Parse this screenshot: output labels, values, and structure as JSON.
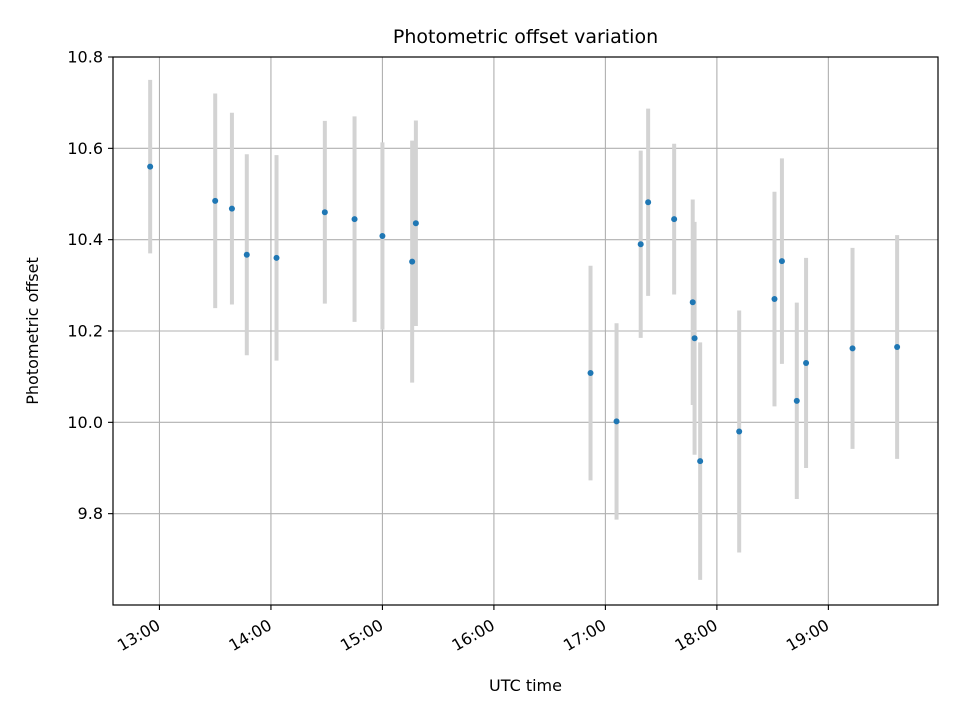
{
  "chart_data": {
    "type": "scatter",
    "title": "Photometric offset variation",
    "xlabel": "UTC time",
    "ylabel": "Photometric offset",
    "xlim": [
      "12:35",
      "19:59"
    ],
    "ylim": [
      9.6,
      10.8
    ],
    "x_ticks": [
      "13:00",
      "14:00",
      "15:00",
      "16:00",
      "17:00",
      "18:00",
      "19:00"
    ],
    "y_ticks": [
      9.8,
      10.0,
      10.2,
      10.4,
      10.6,
      10.8
    ],
    "grid": true,
    "colors": {
      "point": "#1f77b4",
      "errorbar": "#d3d3d3",
      "grid": "#b0b0b0"
    },
    "points": [
      {
        "x": "12:55",
        "y": 10.56,
        "err": 0.19
      },
      {
        "x": "13:30",
        "y": 10.485,
        "err": 0.235
      },
      {
        "x": "13:39",
        "y": 10.468,
        "err": 0.21
      },
      {
        "x": "13:47",
        "y": 10.367,
        "err": 0.22
      },
      {
        "x": "14:03",
        "y": 10.36,
        "err": 0.225
      },
      {
        "x": "14:29",
        "y": 10.46,
        "err": 0.2
      },
      {
        "x": "14:45",
        "y": 10.445,
        "err": 0.225
      },
      {
        "x": "15:00",
        "y": 10.408,
        "err": 0.205
      },
      {
        "x": "15:16",
        "y": 10.352,
        "err": 0.265
      },
      {
        "x": "15:18",
        "y": 10.436,
        "err": 0.225
      },
      {
        "x": "16:52",
        "y": 10.108,
        "err": 0.235
      },
      {
        "x": "17:06",
        "y": 10.002,
        "err": 0.215
      },
      {
        "x": "17:19",
        "y": 10.39,
        "err": 0.205
      },
      {
        "x": "17:23",
        "y": 10.482,
        "err": 0.205
      },
      {
        "x": "17:37",
        "y": 10.445,
        "err": 0.165
      },
      {
        "x": "17:47",
        "y": 10.263,
        "err": 0.225
      },
      {
        "x": "17:48",
        "y": 10.184,
        "err": 0.255
      },
      {
        "x": "17:51",
        "y": 9.915,
        "err": 0.26
      },
      {
        "x": "18:12",
        "y": 9.98,
        "err": 0.265
      },
      {
        "x": "18:31",
        "y": 10.27,
        "err": 0.235
      },
      {
        "x": "18:35",
        "y": 10.353,
        "err": 0.225
      },
      {
        "x": "18:43",
        "y": 10.047,
        "err": 0.215
      },
      {
        "x": "18:48",
        "y": 10.13,
        "err": 0.23
      },
      {
        "x": "19:13",
        "y": 10.162,
        "err": 0.22
      },
      {
        "x": "19:37",
        "y": 10.165,
        "err": 0.245
      }
    ]
  }
}
